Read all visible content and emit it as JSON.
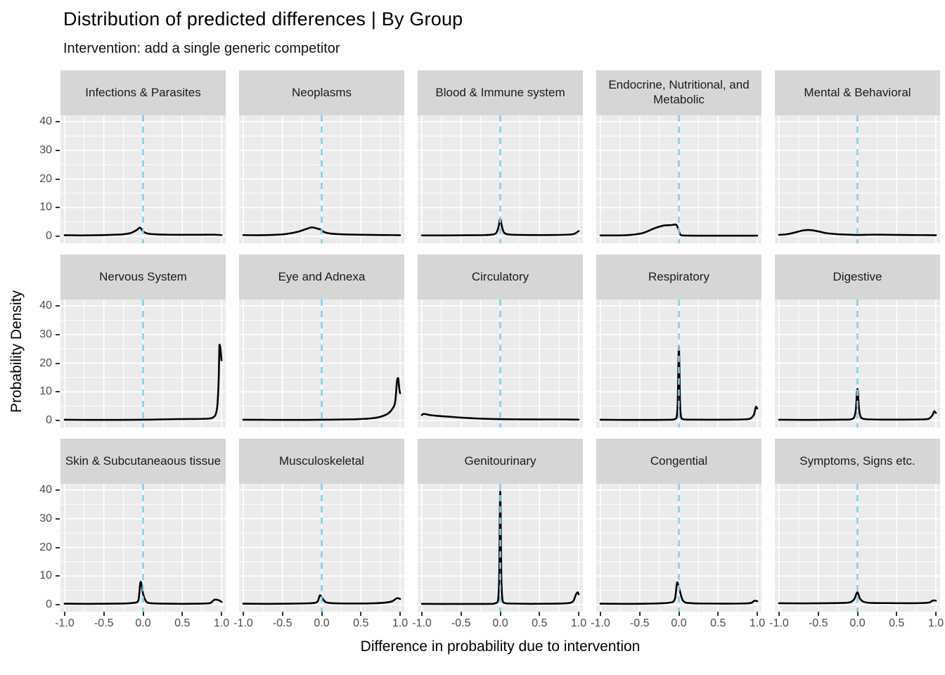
{
  "title": "Distribution of predicted differences | By Group",
  "subtitle": "Intervention: add a single generic competitor",
  "axes": {
    "x_label": "Difference in probability due to intervention",
    "y_label": "Probability Density",
    "x_tick_labels": [
      "-1.0",
      "-0.5",
      "0.0",
      "0.5",
      "1.0"
    ],
    "x_tick_values": [
      -1,
      -0.5,
      0,
      0.5,
      1
    ],
    "x_minor_values": [
      -0.75,
      -0.25,
      0.25,
      0.75
    ],
    "y_tick_labels": [
      "0",
      "10",
      "20",
      "30",
      "40"
    ],
    "y_tick_values": [
      0,
      10,
      20,
      30,
      40
    ],
    "y_minor_values": [
      5,
      15,
      25,
      35
    ]
  },
  "colors": {
    "panel_bg": "#EBEBEB",
    "strip_bg": "#D6D6D6",
    "grid": "#FFFFFF",
    "curve": "#000000",
    "ref_line": "#87CEEB",
    "tick_text": "#4D4D4D",
    "strip_text": "#1A1A1A"
  },
  "chart_data": {
    "type": "line",
    "subtype": "faceted-density",
    "layout": {
      "rows": 3,
      "cols": 5
    },
    "xlim": [
      -1,
      1
    ],
    "ylim": [
      0,
      40
    ],
    "grid": "on",
    "legend": "none",
    "xlabel": "Difference in probability due to intervention",
    "ylabel": "Probability Density",
    "reference_line": {
      "x": 0,
      "style": "dashed",
      "color": "#87CEEB"
    },
    "facets": [
      {
        "title": "Infections & Parasites",
        "curve": [
          [
            -1,
            0.35
          ],
          [
            -0.8,
            0.3
          ],
          [
            -0.6,
            0.35
          ],
          [
            -0.4,
            0.5
          ],
          [
            -0.25,
            0.7
          ],
          [
            -0.15,
            1.2
          ],
          [
            -0.08,
            2.2
          ],
          [
            -0.04,
            3.0
          ],
          [
            0,
            1.7
          ],
          [
            0.05,
            1.0
          ],
          [
            0.15,
            0.7
          ],
          [
            0.3,
            0.55
          ],
          [
            0.5,
            0.5
          ],
          [
            0.7,
            0.5
          ],
          [
            0.9,
            0.55
          ],
          [
            1,
            0.4
          ]
        ]
      },
      {
        "title": "Neoplasms",
        "curve": [
          [
            -1,
            0.4
          ],
          [
            -0.8,
            0.35
          ],
          [
            -0.6,
            0.5
          ],
          [
            -0.45,
            0.8
          ],
          [
            -0.3,
            1.6
          ],
          [
            -0.2,
            2.5
          ],
          [
            -0.12,
            3.1
          ],
          [
            -0.06,
            2.7
          ],
          [
            -0.02,
            2.4
          ],
          [
            0.03,
            1.5
          ],
          [
            0.1,
            1.0
          ],
          [
            0.25,
            0.7
          ],
          [
            0.45,
            0.55
          ],
          [
            0.7,
            0.45
          ],
          [
            0.9,
            0.4
          ],
          [
            1,
            0.35
          ]
        ]
      },
      {
        "title": "Blood & Immune system",
        "curve": [
          [
            -1,
            0.3
          ],
          [
            -0.7,
            0.3
          ],
          [
            -0.4,
            0.35
          ],
          [
            -0.2,
            0.4
          ],
          [
            -0.1,
            0.6
          ],
          [
            -0.05,
            1.2
          ],
          [
            -0.02,
            3.5
          ],
          [
            0,
            6.2
          ],
          [
            0.02,
            3.5
          ],
          [
            0.05,
            1.2
          ],
          [
            0.12,
            0.6
          ],
          [
            0.3,
            0.45
          ],
          [
            0.5,
            0.4
          ],
          [
            0.7,
            0.45
          ],
          [
            0.85,
            0.55
          ],
          [
            0.95,
            0.9
          ],
          [
            1,
            1.8
          ]
        ]
      },
      {
        "title": "Endocrine, Nutritional, and Metabolic",
        "curve": [
          [
            -1,
            0.3
          ],
          [
            -0.8,
            0.3
          ],
          [
            -0.6,
            0.5
          ],
          [
            -0.45,
            1.2
          ],
          [
            -0.3,
            2.9
          ],
          [
            -0.2,
            3.7
          ],
          [
            -0.1,
            3.9
          ],
          [
            -0.04,
            4.1
          ],
          [
            -0.01,
            2.8
          ],
          [
            0.02,
            0.5
          ],
          [
            0.06,
            0.25
          ],
          [
            0.3,
            0.2
          ],
          [
            0.6,
            0.2
          ],
          [
            1,
            0.2
          ]
        ]
      },
      {
        "title": "Mental & Behavioral",
        "curve": [
          [
            -1,
            0.5
          ],
          [
            -0.9,
            0.7
          ],
          [
            -0.8,
            1.3
          ],
          [
            -0.7,
            2.0
          ],
          [
            -0.62,
            2.2
          ],
          [
            -0.5,
            1.7
          ],
          [
            -0.4,
            1.1
          ],
          [
            -0.3,
            0.8
          ],
          [
            -0.15,
            0.6
          ],
          [
            0,
            0.45
          ],
          [
            0.2,
            0.55
          ],
          [
            0.4,
            0.5
          ],
          [
            0.6,
            0.45
          ],
          [
            0.8,
            0.4
          ],
          [
            1,
            0.35
          ]
        ]
      },
      {
        "title": "Nervous System",
        "curve": [
          [
            -1,
            0.25
          ],
          [
            -0.6,
            0.2
          ],
          [
            -0.3,
            0.2
          ],
          [
            0,
            0.25
          ],
          [
            0.2,
            0.35
          ],
          [
            0.4,
            0.45
          ],
          [
            0.6,
            0.5
          ],
          [
            0.75,
            0.55
          ],
          [
            0.85,
            0.7
          ],
          [
            0.9,
            1.2
          ],
          [
            0.93,
            2.5
          ],
          [
            0.95,
            6
          ],
          [
            0.965,
            15
          ],
          [
            0.975,
            26.5
          ],
          [
            0.985,
            25.5
          ],
          [
            1,
            21
          ]
        ]
      },
      {
        "title": "Eye and Adnexa",
        "curve": [
          [
            -1,
            0.25
          ],
          [
            -0.5,
            0.2
          ],
          [
            -0.2,
            0.2
          ],
          [
            0,
            0.25
          ],
          [
            0.3,
            0.35
          ],
          [
            0.5,
            0.5
          ],
          [
            0.65,
            0.8
          ],
          [
            0.75,
            1.3
          ],
          [
            0.85,
            2.5
          ],
          [
            0.9,
            4
          ],
          [
            0.94,
            7
          ],
          [
            0.965,
            14.5
          ],
          [
            0.975,
            14.8
          ],
          [
            0.99,
            11
          ],
          [
            1,
            9.5
          ]
        ]
      },
      {
        "title": "Circulatory",
        "curve": [
          [
            -1,
            1.9
          ],
          [
            -0.98,
            2.3
          ],
          [
            -0.95,
            2.2
          ],
          [
            -0.9,
            1.9
          ],
          [
            -0.8,
            1.6
          ],
          [
            -0.7,
            1.4
          ],
          [
            -0.6,
            1.2
          ],
          [
            -0.5,
            1.0
          ],
          [
            -0.4,
            0.85
          ],
          [
            -0.3,
            0.7
          ],
          [
            -0.2,
            0.6
          ],
          [
            -0.1,
            0.5
          ],
          [
            0,
            0.45
          ],
          [
            0.2,
            0.4
          ],
          [
            0.5,
            0.35
          ],
          [
            0.8,
            0.35
          ],
          [
            1,
            0.3
          ]
        ]
      },
      {
        "title": "Respiratory",
        "curve": [
          [
            -1,
            0.25
          ],
          [
            -0.6,
            0.2
          ],
          [
            -0.3,
            0.2
          ],
          [
            -0.1,
            0.25
          ],
          [
            -0.04,
            0.6
          ],
          [
            -0.015,
            6
          ],
          [
            0,
            26
          ],
          [
            0.015,
            6
          ],
          [
            0.04,
            0.6
          ],
          [
            0.1,
            0.3
          ],
          [
            0.4,
            0.25
          ],
          [
            0.7,
            0.3
          ],
          [
            0.85,
            0.4
          ],
          [
            0.92,
            0.8
          ],
          [
            0.96,
            2.2
          ],
          [
            0.985,
            4.8
          ],
          [
            1,
            4.2
          ]
        ]
      },
      {
        "title": "Digestive",
        "curve": [
          [
            -1,
            0.25
          ],
          [
            -0.6,
            0.2
          ],
          [
            -0.3,
            0.25
          ],
          [
            -0.12,
            0.3
          ],
          [
            -0.05,
            0.8
          ],
          [
            -0.02,
            4
          ],
          [
            0,
            11
          ],
          [
            0.02,
            4
          ],
          [
            0.05,
            0.9
          ],
          [
            0.12,
            0.4
          ],
          [
            0.3,
            0.3
          ],
          [
            0.6,
            0.3
          ],
          [
            0.8,
            0.35
          ],
          [
            0.9,
            0.5
          ],
          [
            0.96,
            2.0
          ],
          [
            0.98,
            3.2
          ],
          [
            1,
            2.6
          ]
        ]
      },
      {
        "title": "Skin & Subcutaneaous tissue",
        "curve": [
          [
            -1,
            0.35
          ],
          [
            -0.7,
            0.3
          ],
          [
            -0.4,
            0.35
          ],
          [
            -0.2,
            0.45
          ],
          [
            -0.1,
            0.7
          ],
          [
            -0.06,
            1.5
          ],
          [
            -0.03,
            8
          ],
          [
            0,
            3.8
          ],
          [
            0.04,
            1.1
          ],
          [
            0.1,
            0.5
          ],
          [
            0.3,
            0.35
          ],
          [
            0.5,
            0.3
          ],
          [
            0.7,
            0.35
          ],
          [
            0.85,
            0.5
          ],
          [
            0.92,
            1.8
          ],
          [
            0.96,
            1.6
          ],
          [
            1,
            1.0
          ]
        ]
      },
      {
        "title": "Musculoskeletal",
        "curve": [
          [
            -1,
            0.35
          ],
          [
            -0.7,
            0.3
          ],
          [
            -0.4,
            0.35
          ],
          [
            -0.2,
            0.45
          ],
          [
            -0.1,
            0.6
          ],
          [
            -0.05,
            1.2
          ],
          [
            -0.02,
            3.3
          ],
          [
            0.01,
            2.2
          ],
          [
            0.05,
            0.9
          ],
          [
            0.15,
            0.5
          ],
          [
            0.4,
            0.4
          ],
          [
            0.6,
            0.45
          ],
          [
            0.8,
            0.7
          ],
          [
            0.9,
            1.2
          ],
          [
            0.97,
            2.3
          ],
          [
            1,
            2.0
          ]
        ]
      },
      {
        "title": "Genitourinary",
        "curve": [
          [
            -1,
            0.3
          ],
          [
            -0.6,
            0.25
          ],
          [
            -0.3,
            0.25
          ],
          [
            -0.1,
            0.3
          ],
          [
            -0.04,
            0.8
          ],
          [
            -0.015,
            8
          ],
          [
            0,
            39.5
          ],
          [
            0.015,
            8
          ],
          [
            0.04,
            0.8
          ],
          [
            0.1,
            0.4
          ],
          [
            0.4,
            0.3
          ],
          [
            0.7,
            0.35
          ],
          [
            0.85,
            0.5
          ],
          [
            0.93,
            1.2
          ],
          [
            0.97,
            3.8
          ],
          [
            0.99,
            4.3
          ],
          [
            1,
            3.6
          ]
        ]
      },
      {
        "title": "Congential",
        "curve": [
          [
            -1,
            0.35
          ],
          [
            -0.7,
            0.3
          ],
          [
            -0.4,
            0.35
          ],
          [
            -0.2,
            0.5
          ],
          [
            -0.1,
            0.8
          ],
          [
            -0.05,
            2.0
          ],
          [
            -0.02,
            7.8
          ],
          [
            0.01,
            5.0
          ],
          [
            0.05,
            1.5
          ],
          [
            0.12,
            0.6
          ],
          [
            0.3,
            0.4
          ],
          [
            0.6,
            0.35
          ],
          [
            0.8,
            0.4
          ],
          [
            0.92,
            0.6
          ],
          [
            0.97,
            1.4
          ],
          [
            1,
            1.2
          ]
        ]
      },
      {
        "title": "Symptoms, Signs etc.",
        "curve": [
          [
            -1,
            0.5
          ],
          [
            -0.7,
            0.45
          ],
          [
            -0.4,
            0.5
          ],
          [
            -0.2,
            0.6
          ],
          [
            -0.1,
            0.8
          ],
          [
            -0.04,
            2.0
          ],
          [
            0,
            4.3
          ],
          [
            0.03,
            2.2
          ],
          [
            0.08,
            1.0
          ],
          [
            0.2,
            0.6
          ],
          [
            0.4,
            0.55
          ],
          [
            0.6,
            0.5
          ],
          [
            0.8,
            0.55
          ],
          [
            0.92,
            0.8
          ],
          [
            0.97,
            1.5
          ],
          [
            1,
            1.4
          ]
        ]
      }
    ]
  }
}
